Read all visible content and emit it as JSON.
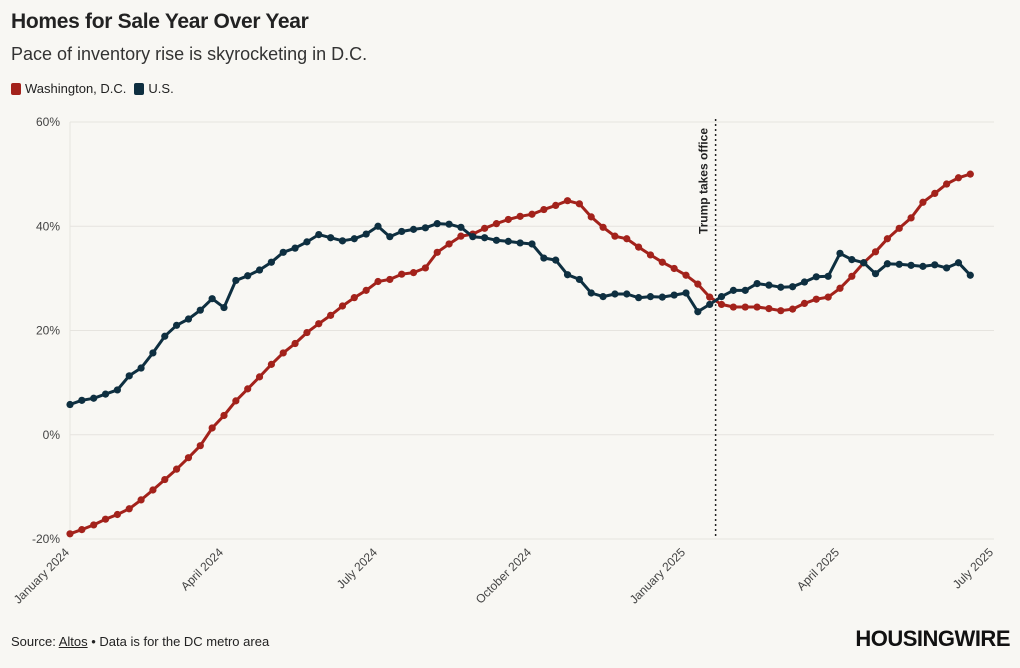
{
  "title": "Homes for Sale Year Over Year",
  "subtitle": "Pace of inventory rise is skyrocketing in D.C.",
  "legend": [
    {
      "label": "Washington, D.C.",
      "color": "#a3221b"
    },
    {
      "label": "U.S.",
      "color": "#0e2f40"
    }
  ],
  "footer": {
    "source_prefix": "Source: ",
    "source_link": "Altos",
    "source_suffix": " • Data is for the DC metro area",
    "brand": "HOUSINGWIRE"
  },
  "chart_data": {
    "type": "line",
    "title": "Homes for Sale Year Over Year",
    "ylim": [
      -20,
      60
    ],
    "y_ticks": [
      60,
      40,
      20,
      0,
      -20
    ],
    "y_tick_labels": [
      "60%",
      "40%",
      "20%",
      "0%",
      "-20%"
    ],
    "x_range": [
      0,
      78
    ],
    "x_ticks": [
      0,
      13,
      26,
      39,
      52,
      65,
      78
    ],
    "x_tick_labels": [
      "January 2024",
      "April 2024",
      "July 2024",
      "October 2024",
      "January 2025",
      "April 2025",
      "July 2025"
    ],
    "annotation": {
      "x": 54.5,
      "label": "Trump takes office"
    },
    "series": [
      {
        "name": "Washington, D.C.",
        "color": "#a3221b",
        "values": [
          -19,
          -18.2,
          -17.3,
          -16.2,
          -15.3,
          -14.2,
          -12.5,
          -10.6,
          -8.6,
          -6.6,
          -4.4,
          -2.1,
          1.3,
          3.7,
          6.5,
          8.8,
          11.1,
          13.5,
          15.7,
          17.5,
          19.6,
          21.3,
          22.9,
          24.7,
          26.3,
          27.7,
          29.4,
          29.8,
          30.8,
          31.1,
          32.0,
          35.0,
          36.6,
          38.1,
          38.5,
          39.6,
          40.5,
          41.3,
          41.9,
          42.3,
          43.2,
          44.0,
          44.9,
          44.3,
          41.8,
          39.8,
          38.1,
          37.6,
          36.0,
          34.5,
          33.1,
          31.9,
          30.6,
          28.9,
          26.4,
          25.0,
          24.5,
          24.5,
          24.5,
          24.2,
          23.8,
          24.1,
          25.2,
          26.0,
          26.4,
          28.1,
          30.4,
          33.0,
          35.1,
          37.6,
          39.6,
          41.6,
          44.6,
          46.3,
          48.1,
          49.3,
          50.0
        ]
      },
      {
        "name": "U.S.",
        "color": "#0e2f40",
        "values": [
          5.8,
          6.6,
          7.0,
          7.8,
          8.6,
          11.3,
          12.8,
          15.7,
          18.9,
          21.0,
          22.2,
          23.9,
          26.1,
          24.4,
          29.6,
          30.5,
          31.6,
          33.1,
          35.0,
          35.8,
          37.0,
          38.4,
          37.8,
          37.2,
          37.6,
          38.5,
          40.0,
          38.0,
          39.0,
          39.4,
          39.7,
          40.5,
          40.4,
          39.8,
          38.0,
          37.8,
          37.3,
          37.1,
          36.8,
          36.6,
          33.9,
          33.5,
          30.7,
          29.8,
          27.2,
          26.5,
          27.0,
          27.0,
          26.3,
          26.5,
          26.4,
          26.8,
          27.2,
          23.6,
          25.0,
          26.5,
          27.7,
          27.7,
          29.0,
          28.7,
          28.3,
          28.4,
          29.3,
          30.3,
          30.4,
          34.8,
          33.6,
          33.0,
          30.9,
          32.8,
          32.7,
          32.5,
          32.3,
          32.6,
          32.0,
          33.0,
          30.6
        ]
      }
    ]
  }
}
